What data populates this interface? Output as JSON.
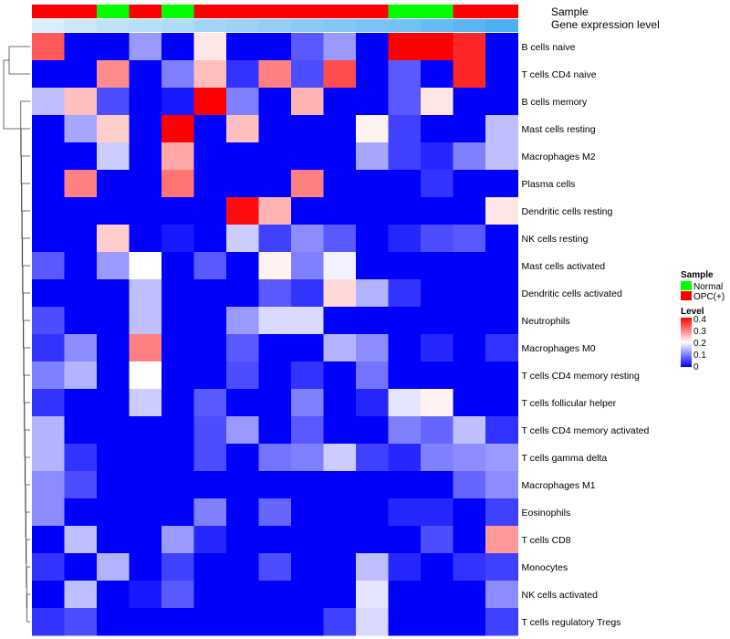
{
  "chart_data": {
    "type": "heatmap",
    "annotations": [
      {
        "name": "Sample"
      },
      {
        "name": "Gene expression level"
      }
    ],
    "rows": [
      "B cells naive",
      "T cells CD4 naive",
      "B cells memory",
      "Mast cells resting",
      "Macrophages M2",
      "Plasma cells",
      "Dendritic cells resting",
      "NK cells resting",
      "Mast cells activated",
      "Dendritic cells activated",
      "Neutrophils",
      "Macrophages M0",
      "T cells CD4 memory resting",
      "T cells follicular helper",
      "T cells CD4 memory activated",
      "T cells gamma delta",
      "Macrophages M1",
      "Eosinophils",
      "T cells CD8",
      "Monocytes",
      "NK cells activated",
      "T cells regulatory  Tregs"
    ],
    "columns": 15,
    "sample_groups": [
      "OPC(+)",
      "OPC(+)",
      "Normal",
      "OPC(+)",
      "Normal",
      "OPC(+)",
      "OPC(+)",
      "OPC(+)",
      "OPC(+)",
      "OPC(+)",
      "OPC(+)",
      "Normal",
      "Normal",
      "OPC(+)",
      "OPC(+)"
    ],
    "expression_level": [
      0.02,
      0.05,
      0.08,
      0.1,
      0.12,
      0.15,
      0.17,
      0.19,
      0.21,
      0.23,
      0.25,
      0.27,
      0.3,
      0.33,
      0.36
    ],
    "values": [
      [
        0.33,
        0.0,
        0.0,
        0.12,
        0.0,
        0.22,
        0.0,
        0.0,
        0.07,
        0.12,
        0.0,
        0.4,
        0.4,
        0.37,
        0.0
      ],
      [
        0.0,
        0.0,
        0.29,
        0.0,
        0.1,
        0.25,
        0.04,
        0.3,
        0.06,
        0.34,
        0.0,
        0.07,
        0.0,
        0.37,
        0.0
      ],
      [
        0.15,
        0.25,
        0.06,
        0.0,
        0.02,
        0.4,
        0.1,
        0.0,
        0.26,
        0.0,
        0.0,
        0.07,
        0.22,
        0.0,
        0.0
      ],
      [
        0.0,
        0.13,
        0.24,
        0.0,
        0.4,
        0.0,
        0.25,
        0.0,
        0.0,
        0.0,
        0.21,
        0.05,
        0.0,
        0.0,
        0.15
      ],
      [
        0.0,
        0.0,
        0.16,
        0.0,
        0.27,
        0.0,
        0.0,
        0.0,
        0.0,
        0.0,
        0.13,
        0.05,
        0.03,
        0.1,
        0.15
      ],
      [
        0.0,
        0.3,
        0.0,
        0.0,
        0.31,
        0.0,
        0.0,
        0.0,
        0.3,
        0.0,
        0.0,
        0.0,
        0.04,
        0.0,
        0.0
      ],
      [
        0.0,
        0.0,
        0.0,
        0.0,
        0.0,
        0.0,
        0.39,
        0.26,
        0.0,
        0.0,
        0.0,
        0.0,
        0.0,
        0.0,
        0.22
      ],
      [
        0.0,
        0.0,
        0.24,
        0.0,
        0.02,
        0.0,
        0.16,
        0.05,
        0.11,
        0.07,
        0.0,
        0.03,
        0.06,
        0.07,
        0.0
      ],
      [
        0.07,
        0.0,
        0.12,
        0.2,
        0.0,
        0.07,
        0.0,
        0.21,
        0.1,
        0.19,
        0.0,
        0.0,
        0.0,
        0.0,
        0.0
      ],
      [
        0.0,
        0.0,
        0.0,
        0.15,
        0.0,
        0.0,
        0.0,
        0.07,
        0.04,
        0.23,
        0.14,
        0.04,
        0.0,
        0.0,
        0.0
      ],
      [
        0.06,
        0.0,
        0.0,
        0.15,
        0.0,
        0.0,
        0.12,
        0.17,
        0.17,
        0.0,
        0.0,
        0.0,
        0.0,
        0.0,
        0.0
      ],
      [
        0.04,
        0.11,
        0.0,
        0.3,
        0.0,
        0.0,
        0.07,
        0.0,
        0.0,
        0.14,
        0.11,
        0.0,
        0.03,
        0.0,
        0.04
      ],
      [
        0.1,
        0.14,
        0.0,
        0.2,
        0.0,
        0.0,
        0.06,
        0.0,
        0.04,
        0.0,
        0.09,
        0.0,
        0.0,
        0.0,
        0.0
      ],
      [
        0.04,
        0.0,
        0.0,
        0.16,
        0.0,
        0.07,
        0.0,
        0.0,
        0.1,
        0.0,
        0.03,
        0.18,
        0.21,
        0.0,
        0.0
      ],
      [
        0.14,
        0.0,
        0.0,
        0.0,
        0.0,
        0.06,
        0.12,
        0.0,
        0.07,
        0.0,
        0.0,
        0.1,
        0.08,
        0.15,
        0.04
      ],
      [
        0.14,
        0.04,
        0.0,
        0.0,
        0.0,
        0.06,
        0.0,
        0.09,
        0.1,
        0.16,
        0.05,
        0.03,
        0.1,
        0.11,
        0.12
      ],
      [
        0.11,
        0.06,
        0.0,
        0.0,
        0.0,
        0.0,
        0.0,
        0.0,
        0.0,
        0.0,
        0.0,
        0.0,
        0.0,
        0.08,
        0.11
      ],
      [
        0.11,
        0.0,
        0.0,
        0.0,
        0.0,
        0.1,
        0.0,
        0.08,
        0.0,
        0.0,
        0.0,
        0.03,
        0.03,
        0.0,
        0.05
      ],
      [
        0.0,
        0.15,
        0.0,
        0.0,
        0.12,
        0.03,
        0.0,
        0.0,
        0.0,
        0.0,
        0.0,
        0.0,
        0.06,
        0.0,
        0.28
      ],
      [
        0.04,
        0.0,
        0.14,
        0.0,
        0.05,
        0.0,
        0.0,
        0.06,
        0.0,
        0.0,
        0.15,
        0.03,
        0.0,
        0.04,
        0.05
      ],
      [
        0.0,
        0.15,
        0.0,
        0.02,
        0.07,
        0.0,
        0.0,
        0.0,
        0.0,
        0.0,
        0.18,
        0.0,
        0.0,
        0.0,
        0.11
      ],
      [
        0.04,
        0.06,
        0.0,
        0.0,
        0.0,
        0.0,
        0.0,
        0.0,
        0.0,
        0.05,
        0.17,
        0.0,
        0.0,
        0.0,
        0.05
      ]
    ],
    "color_scale": {
      "min": 0,
      "max": 0.4,
      "low": "#0000ff",
      "mid": "#ffffff",
      "high": "#ff0000"
    },
    "legends": [
      {
        "title": "Sample",
        "entries": [
          {
            "label": "Normal",
            "color": "#00ff00"
          },
          {
            "label": "OPC(+)",
            "color": "#ff0000"
          }
        ]
      },
      {
        "title": "Level",
        "ticks": [
          "0.4",
          "0.3",
          "0.2",
          "0.1",
          "0"
        ]
      }
    ]
  }
}
